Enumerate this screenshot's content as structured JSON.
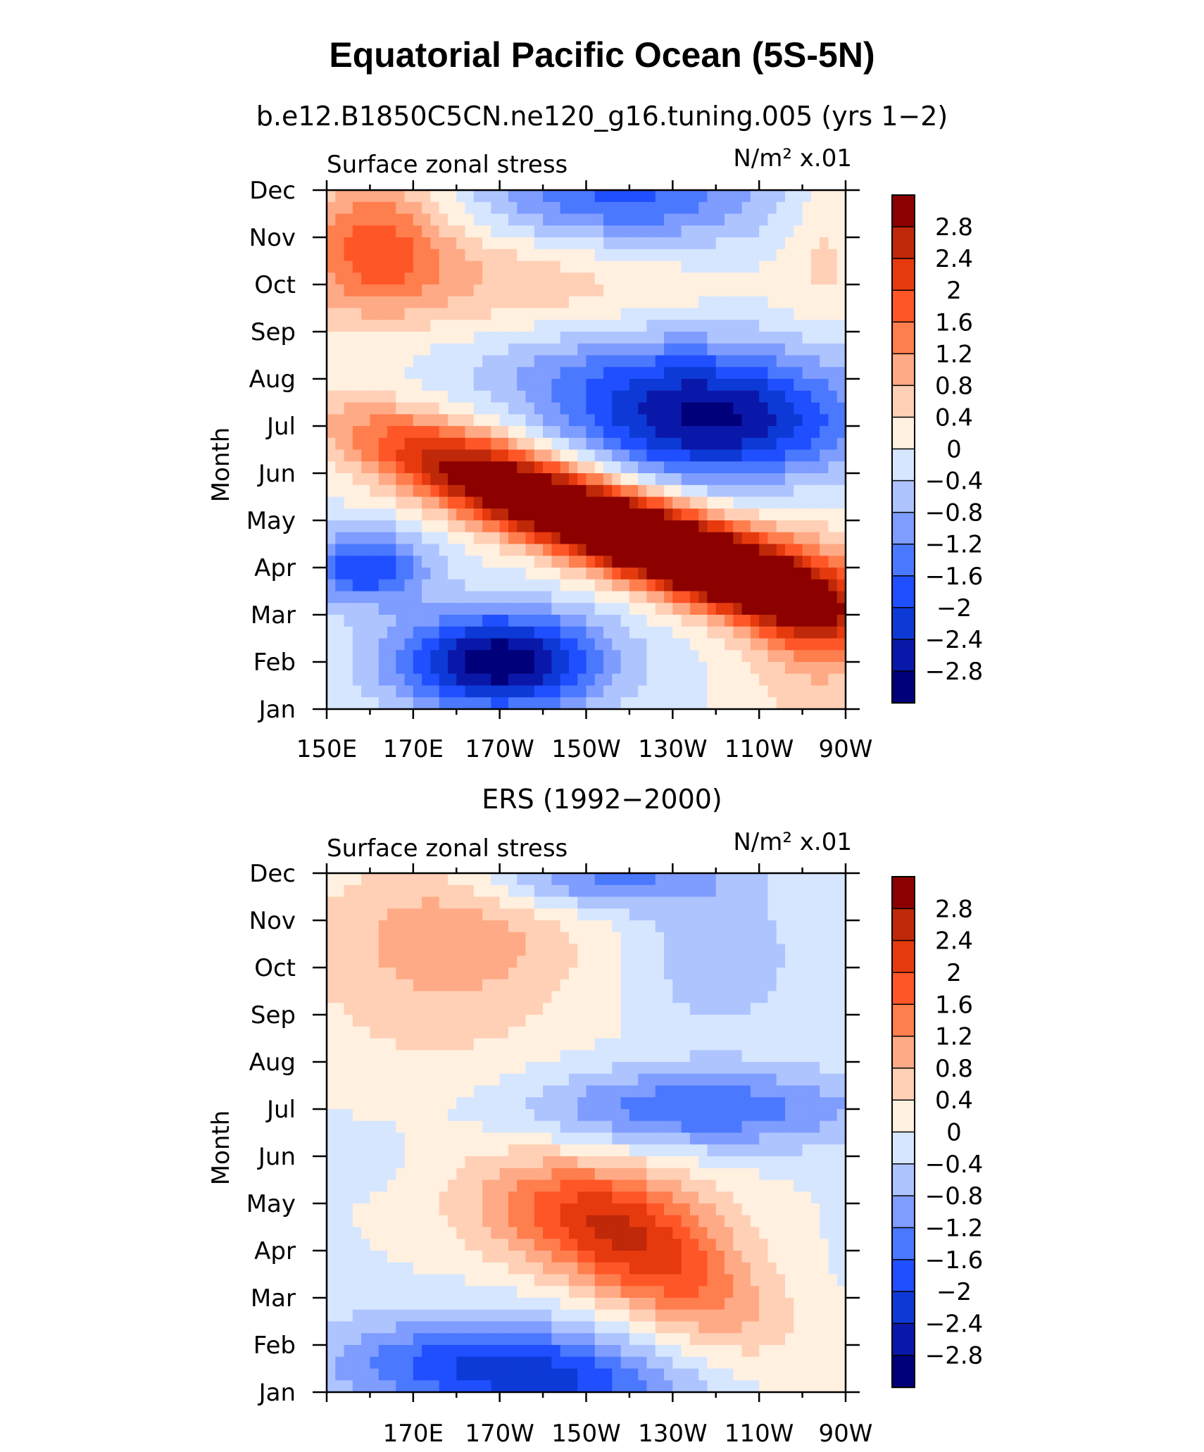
{
  "figure": {
    "title": "Equatorial Pacific Ocean (5S-5N)"
  },
  "colors": {
    "palette": [
      "#00007a",
      "#0a18aa",
      "#0d3ad6",
      "#1f4fff",
      "#4a78ff",
      "#7f9cff",
      "#aec4ff",
      "#d6e6ff",
      "#fff0e0",
      "#ffd0b6",
      "#ffaa86",
      "#ff7e4e",
      "#ff5628",
      "#e63a0e",
      "#bf2808",
      "#8c0000"
    ]
  },
  "chart_data": [
    {
      "type": "heatmap",
      "title": "b.e12.B1850C5CN.ne120_g16.tuning.005 (yrs 1−2)",
      "left_label": "Surface zonal stress",
      "right_label": "N/m² x.01",
      "xlabel": "",
      "ylabel": "Month",
      "x_tick_labels": [
        "150E",
        "170E",
        "170W",
        "150W",
        "130W",
        "110W",
        "90W"
      ],
      "y_tick_labels": [
        "Jan",
        "Feb",
        "Mar",
        "Apr",
        "May",
        "Jun",
        "Jul",
        "Aug",
        "Sep",
        "Oct",
        "Nov",
        "Dec"
      ],
      "xlim_deg_east": [
        150,
        270
      ],
      "ylim_month": [
        1,
        12
      ],
      "levels": [
        -3.2,
        -2.8,
        -2.4,
        -2.0,
        -1.6,
        -1.2,
        -0.8,
        -0.4,
        0,
        0.4,
        0.8,
        1.2,
        1.6,
        2.0,
        2.4,
        2.8,
        3.2
      ],
      "colorbar_labels": [
        "2.8",
        "2.4",
        "2",
        "1.6",
        "1.2",
        "0.8",
        "0.4",
        "0",
        "−0.4",
        "−0.8",
        "−1.2",
        "−1.6",
        "−2",
        "−2.4",
        "−2.8"
      ],
      "base": 0.0,
      "features": [
        {
          "name": "positive band May",
          "lon": 212,
          "month": 4.9,
          "value": 3.1,
          "sigma_lon": 32,
          "sigma_month": 0.6,
          "tilt": -0.032
        },
        {
          "name": "positive band Apr",
          "lon": 245,
          "month": 3.9,
          "value": 2.8,
          "sigma_lon": 22,
          "sigma_month": 0.7,
          "tilt": -0.032
        },
        {
          "name": "positive band Jun",
          "lon": 190,
          "month": 6.0,
          "value": 1.6,
          "sigma_lon": 24,
          "sigma_month": 0.7,
          "tilt": -0.03
        },
        {
          "name": "negative Feb",
          "lon": 190,
          "month": 2.0,
          "value": -3.2,
          "sigma_lon": 17,
          "sigma_month": 0.75
        },
        {
          "name": "negative Apr west",
          "lon": 159,
          "month": 4.0,
          "value": -2.0,
          "sigma_lon": 10,
          "sigma_month": 0.55
        },
        {
          "name": "negative Jul",
          "lon": 240,
          "month": 7.0,
          "value": -2.6,
          "sigma_lon": 24,
          "sigma_month": 0.9
        },
        {
          "name": "negative Aug",
          "lon": 222,
          "month": 8.2,
          "value": -1.0,
          "sigma_lon": 30,
          "sigma_month": 0.8
        },
        {
          "name": "negative Dec",
          "lon": 218,
          "month": 11.9,
          "value": -1.8,
          "sigma_lon": 24,
          "sigma_month": 0.9
        },
        {
          "name": "positive Nov west",
          "lon": 161,
          "month": 10.9,
          "value": 1.6,
          "sigma_lon": 12,
          "sigma_month": 1.1
        },
        {
          "name": "positive Oct",
          "lon": 195,
          "month": 10.2,
          "value": 0.85,
          "sigma_lon": 30,
          "sigma_month": 0.9
        },
        {
          "name": "positive Nov east",
          "lon": 265,
          "month": 10.8,
          "value": 0.5,
          "sigma_lon": 7,
          "sigma_month": 1.2
        },
        {
          "name": "positive Mar far east",
          "lon": 262,
          "month": 2.8,
          "value": 0.9,
          "sigma_lon": 10,
          "sigma_month": 1.6
        }
      ]
    },
    {
      "type": "heatmap",
      "title": "ERS (1992−2000)",
      "left_label": "Surface zonal stress",
      "right_label": "N/m² x.01",
      "xlabel": "",
      "ylabel": "Month",
      "x_tick_labels": [
        "170E",
        "170W",
        "150W",
        "130W",
        "110W",
        "90W"
      ],
      "y_tick_labels": [
        "Jan",
        "Feb",
        "Mar",
        "Apr",
        "May",
        "Jun",
        "Jul",
        "Aug",
        "Sep",
        "Oct",
        "Nov",
        "Dec"
      ],
      "xlim_deg_east": [
        150,
        270
      ],
      "ylim_month": [
        1,
        12
      ],
      "levels": [
        -3.2,
        -2.8,
        -2.4,
        -2.0,
        -1.6,
        -1.2,
        -0.8,
        -0.4,
        0,
        0.4,
        0.8,
        1.2,
        1.6,
        2.0,
        2.4,
        2.8,
        3.2
      ],
      "colorbar_labels": [
        "2.8",
        "2.4",
        "2",
        "1.6",
        "1.2",
        "0.8",
        "0.4",
        "0",
        "−0.4",
        "−0.8",
        "−1.2",
        "−1.6",
        "−2",
        "−2.4",
        "−2.8"
      ],
      "base": -0.1,
      "features": [
        {
          "name": "positive Mar-Apr",
          "lon": 225,
          "month": 3.8,
          "value": 1.9,
          "sigma_lon": 20,
          "sigma_month": 1.0,
          "tilt": -0.04
        },
        {
          "name": "positive May",
          "lon": 210,
          "month": 4.8,
          "value": 1.1,
          "sigma_lon": 24,
          "sigma_month": 0.9
        },
        {
          "name": "positive Oct west",
          "lon": 175,
          "month": 9.9,
          "value": 0.7,
          "sigma_lon": 26,
          "sigma_month": 1.9
        },
        {
          "name": "positive Nov",
          "lon": 182,
          "month": 11.0,
          "value": 0.6,
          "sigma_lon": 20,
          "sigma_month": 1.1
        },
        {
          "name": "negative Feb",
          "lon": 185,
          "month": 1.6,
          "value": -1.8,
          "sigma_lon": 24,
          "sigma_month": 0.7
        },
        {
          "name": "negative Jan east",
          "lon": 210,
          "month": 1.1,
          "value": -1.0,
          "sigma_lon": 18,
          "sigma_month": 0.5
        },
        {
          "name": "negative Jul",
          "lon": 235,
          "month": 7.0,
          "value": -1.5,
          "sigma_lon": 28,
          "sigma_month": 0.6
        },
        {
          "name": "negative Oct",
          "lon": 240,
          "month": 10.2,
          "value": -0.7,
          "sigma_lon": 12,
          "sigma_month": 1.0
        },
        {
          "name": "negative Dec",
          "lon": 212,
          "month": 11.9,
          "value": -1.4,
          "sigma_lon": 20,
          "sigma_month": 0.5
        },
        {
          "name": "negative Jun west",
          "lon": 158,
          "month": 6.0,
          "value": -0.4,
          "sigma_lon": 6,
          "sigma_month": 0.4
        }
      ]
    }
  ]
}
